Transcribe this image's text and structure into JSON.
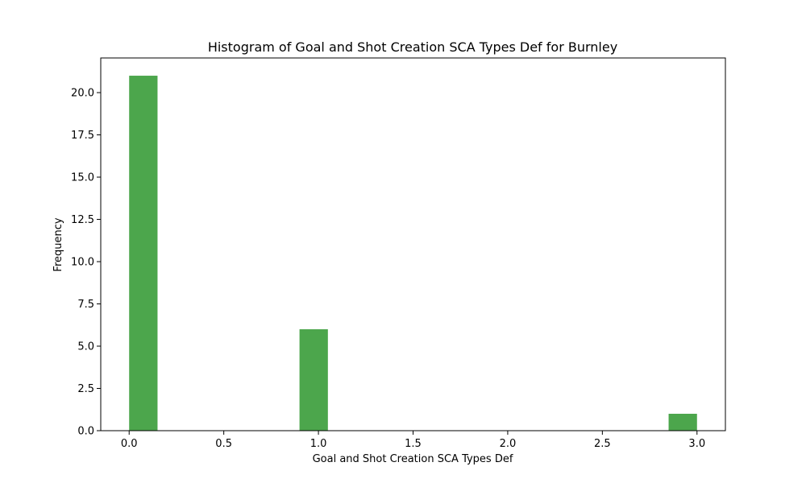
{
  "chart_data": {
    "type": "bar",
    "title": "Histogram of Goal and Shot Creation SCA Types Def for Burnley",
    "xlabel": "Goal and Shot Creation SCA Types Def",
    "ylabel": "Frequency",
    "xlim": [
      -0.15,
      3.15
    ],
    "ylim": [
      0,
      22.05
    ],
    "x_ticks": [
      0.0,
      0.5,
      1.0,
      1.5,
      2.0,
      2.5,
      3.0
    ],
    "x_tick_labels": [
      "0.0",
      "0.5",
      "1.0",
      "1.5",
      "2.0",
      "2.5",
      "3.0"
    ],
    "y_ticks": [
      0.0,
      2.5,
      5.0,
      7.5,
      10.0,
      12.5,
      15.0,
      17.5,
      20.0
    ],
    "y_tick_labels": [
      "0.0",
      "2.5",
      "5.0",
      "7.5",
      "10.0",
      "12.5",
      "15.0",
      "17.5",
      "20.0"
    ],
    "bins": [
      {
        "start": 0.0,
        "end": 0.15,
        "count": 21
      },
      {
        "start": 0.9,
        "end": 1.05,
        "count": 6
      },
      {
        "start": 2.85,
        "end": 3.0,
        "count": 1
      }
    ],
    "bar_color": "#4ca64c",
    "grid": false,
    "legend": false
  }
}
